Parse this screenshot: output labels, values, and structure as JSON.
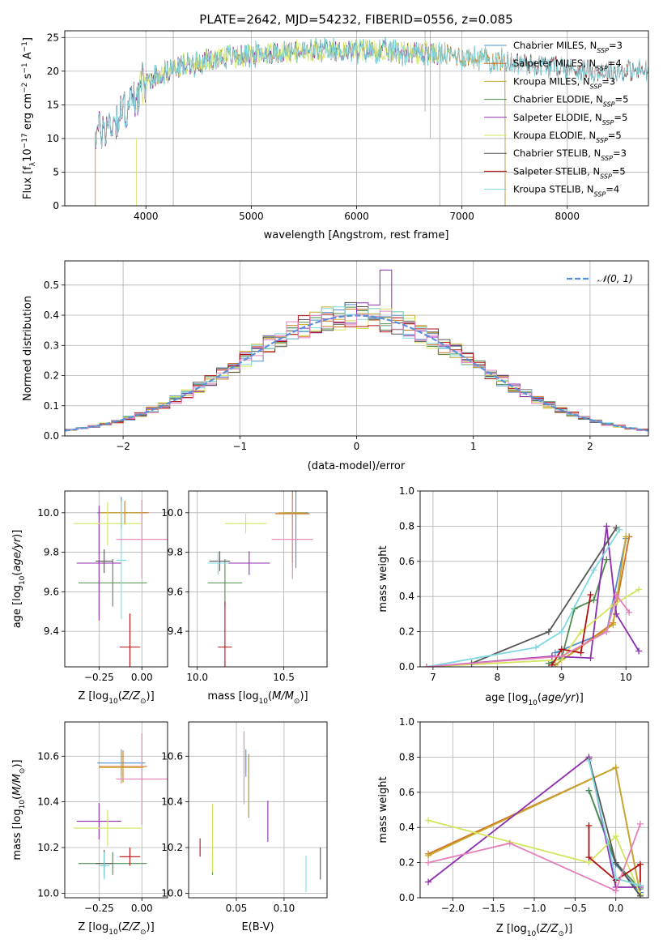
{
  "colors": {
    "Chabrier MILES": "#4f8fce",
    "Salpeter MILES": "#d27324",
    "Kroupa MILES": "#c6a72b",
    "Chabrier ELODIE": "#4d8c4d",
    "Salpeter ELODIE": "#8e2db0",
    "Kroupa ELODIE": "#d4e45a",
    "Chabrier STELIB": "#555555",
    "Salpeter STELIB": "#b01010",
    "Kroupa STELIB": "#7fd8e0",
    "pink": "#e47fbb",
    "gaussian": "#5b8fd8"
  },
  "chart_data": [
    {
      "id": "spectrum",
      "type": "line",
      "title": "PLATE=2642, MJD=54232, FIBERID=0556, z=0.085",
      "xlabel": "wavelength [Angstrom, rest frame]",
      "ylabel": "Flux [f_λ10^-17 erg cm^-2 s^-1 A^-1]",
      "xlim": [
        3230,
        8770
      ],
      "ylim": [
        0,
        26
      ],
      "xticks": [
        4000,
        5000,
        6000,
        7000,
        8000
      ],
      "yticks": [
        0,
        5,
        10,
        15,
        20,
        25
      ],
      "legend_position": "upper-right",
      "legend": [
        {
          "label": "Chabrier MILES, N_SSP=3",
          "text": "Chabrier MILES, N",
          "sub": "SSP",
          "tail": "=3",
          "color": "Chabrier MILES"
        },
        {
          "label": "Salpeter MILES, N_SSP=4",
          "text": "Salpeter MILES, N",
          "sub": "SSP",
          "tail": "=4",
          "color": "Salpeter MILES"
        },
        {
          "label": "Kroupa MILES, N_SSP=3",
          "text": "Kroupa MILES, N",
          "sub": "SSP",
          "tail": "=3",
          "color": "Kroupa MILES"
        },
        {
          "label": "Chabrier ELODIE, N_SSP=5",
          "text": "Chabrier ELODIE, N",
          "sub": "SSP",
          "tail": "=5",
          "color": "Chabrier ELODIE"
        },
        {
          "label": "Salpeter ELODIE, N_SSP=5",
          "text": "Salpeter ELODIE, N",
          "sub": "SSP",
          "tail": "=5",
          "color": "Salpeter ELODIE"
        },
        {
          "label": "Kroupa ELODIE, N_SSP=5",
          "text": "Kroupa ELODIE, N",
          "sub": "SSP",
          "tail": "=5",
          "color": "Kroupa ELODIE"
        },
        {
          "label": "Chabrier STELIB, N_SSP=3",
          "text": "Chabrier STELIB, N",
          "sub": "SSP",
          "tail": "=3",
          "color": "Chabrier STELIB"
        },
        {
          "label": "Salpeter STELIB, N_SSP=5",
          "text": "Salpeter STELIB, N",
          "sub": "SSP",
          "tail": "=5",
          "color": "Salpeter STELIB"
        },
        {
          "label": "Kroupa STELIB, N_SSP=4",
          "text": "Kroupa STELIB, N",
          "sub": "SSP",
          "tail": "=4",
          "color": "Kroupa STELIB"
        }
      ],
      "continuum": [
        [
          3500,
          10.5
        ],
        [
          3700,
          12.5
        ],
        [
          3900,
          16
        ],
        [
          4000,
          18.5
        ],
        [
          4200,
          20
        ],
        [
          4400,
          21
        ],
        [
          4700,
          22
        ],
        [
          5000,
          22.5
        ],
        [
          5300,
          22.8
        ],
        [
          5600,
          23
        ],
        [
          5900,
          23
        ],
        [
          6200,
          23
        ],
        [
          6500,
          22.8
        ],
        [
          6800,
          22.5
        ],
        [
          7100,
          22
        ],
        [
          7400,
          21.5
        ],
        [
          7700,
          21
        ],
        [
          8000,
          20.5
        ],
        [
          8300,
          20
        ]
      ],
      "series_ranges": {
        "Chabrier MILES": [
          3520,
          7410
        ],
        "Salpeter MILES": [
          3520,
          7410
        ],
        "Kroupa MILES": [
          3520,
          7410
        ],
        "Chabrier ELODIE": [
          3520,
          6790
        ],
        "Salpeter ELODIE": [
          3520,
          6790
        ],
        "Kroupa ELODIE": [
          3910,
          6790
        ],
        "Chabrier STELIB": [
          3520,
          8770
        ],
        "Salpeter STELIB": [
          3520,
          8770
        ],
        "Kroupa STELIB": [
          3520,
          8770
        ]
      }
    },
    {
      "id": "residuals",
      "type": "step",
      "xlabel": "(data-model)/error",
      "ylabel": "Normed distribution",
      "xlim": [
        -2.5,
        2.5
      ],
      "ylim": [
        0,
        0.58
      ],
      "xticks": [
        -2,
        -1,
        0,
        1,
        2
      ],
      "yticks": [
        0.0,
        0.1,
        0.2,
        0.3,
        0.4,
        0.5
      ],
      "bin_width": 0.1,
      "peak_bin": {
        "x": 0.25,
        "value": 0.55
      },
      "legend": [
        {
          "label": "𝒩(0, 1)",
          "color": "gaussian",
          "style": "dashed"
        }
      ]
    },
    {
      "id": "age_vs_Z",
      "type": "errorbar",
      "xlabel": "Z [log10(Z/Z⊙)]",
      "ylabel": "age  [log10(age/yr)]",
      "xlim": [
        -0.45,
        0.15
      ],
      "ylim": [
        9.22,
        10.11
      ],
      "xticks": [
        -0.25,
        0.0
      ],
      "yticks": [
        9.4,
        9.6,
        9.8,
        10.0
      ],
      "points": [
        {
          "s": "Chabrier MILES",
          "x": -0.12,
          "y": 10.0,
          "xerr": 0.14,
          "yerr": 0.08
        },
        {
          "s": "Salpeter MILES",
          "x": -0.1,
          "y": 10.0,
          "xerr": 0.14,
          "yerr": 0.06
        },
        {
          "s": "Kroupa MILES",
          "x": -0.12,
          "y": 10.0,
          "xerr": 0.13,
          "yerr": 0.06
        },
        {
          "s": "Chabrier ELODIE",
          "x": -0.17,
          "y": 9.645,
          "xerr": 0.2,
          "yerr": 0.12
        },
        {
          "s": "Salpeter ELODIE",
          "x": -0.25,
          "y": 9.745,
          "xerr": 0.13,
          "yerr": 0.29
        },
        {
          "s": "Kroupa ELODIE",
          "x": -0.2,
          "y": 9.945,
          "xerr": 0.2,
          "yerr": 0.11
        },
        {
          "s": "Chabrier STELIB",
          "x": -0.22,
          "y": 9.755,
          "xerr": 0.05,
          "yerr": 0.06
        },
        {
          "s": "Salpeter STELIB",
          "x": -0.07,
          "y": 9.32,
          "xerr": 0.06,
          "yerr": 0.17
        },
        {
          "s": "Kroupa STELIB",
          "x": -0.12,
          "y": 9.76,
          "xerr": 0.03,
          "yerr": 0.3
        },
        {
          "s": "pink",
          "x": 0.0,
          "y": 9.865,
          "xerr": 0.15,
          "yerr": 0.2
        }
      ]
    },
    {
      "id": "age_vs_mass",
      "type": "errorbar",
      "xlabel": "mass [log10(M/M⊙)]",
      "ylabel": "",
      "xlim": [
        9.95,
        10.75
      ],
      "ylim": [
        9.22,
        10.11
      ],
      "xticks": [
        10.0,
        10.5
      ],
      "yticks": [
        9.4,
        9.6,
        9.8,
        10.0
      ],
      "points": [
        {
          "s": "Chabrier MILES",
          "x": 10.57,
          "y": 10.0,
          "xerr": 0.07,
          "yerr": 0.28
        },
        {
          "s": "Salpeter MILES",
          "x": 10.55,
          "y": 9.995,
          "xerr": 0.1,
          "yerr": 0.25
        },
        {
          "s": "Kroupa MILES",
          "x": 10.55,
          "y": 10.0,
          "xerr": 0.08,
          "yerr": 0.06
        },
        {
          "s": "Chabrier ELODIE",
          "x": 10.16,
          "y": 9.645,
          "xerr": 0.1,
          "yerr": 0.12
        },
        {
          "s": "Salpeter ELODIE",
          "x": 10.3,
          "y": 9.745,
          "xerr": 0.12,
          "yerr": 0.06
        },
        {
          "s": "Kroupa ELODIE",
          "x": 10.28,
          "y": 9.945,
          "xerr": 0.12,
          "yerr": 0.05
        },
        {
          "s": "Chabrier STELIB",
          "x": 10.13,
          "y": 9.755,
          "xerr": 0.06,
          "yerr": 0.05
        },
        {
          "s": "Salpeter STELIB",
          "x": 10.16,
          "y": 9.32,
          "xerr": 0.04,
          "yerr": 0.23
        },
        {
          "s": "Kroupa STELIB",
          "x": 10.12,
          "y": 9.745,
          "xerr": 0.06,
          "yerr": 0.06
        },
        {
          "s": "pink",
          "x": 10.55,
          "y": 9.865,
          "xerr": 0.12,
          "yerr": 0.2
        }
      ]
    },
    {
      "id": "weight_vs_age",
      "type": "line",
      "xlabel": "age  [log10(age/yr)]",
      "ylabel": "mass weight",
      "xlim": [
        6.8,
        10.35
      ],
      "ylim": [
        0.0,
        1.0
      ],
      "xticks": [
        7,
        8,
        9,
        10
      ],
      "yticks": [
        0.0,
        0.2,
        0.4,
        0.6,
        0.8,
        1.0
      ],
      "series": [
        {
          "s": "Chabrier MILES",
          "x": [
            8.9,
            9.7,
            10.0
          ],
          "y": [
            0.08,
            0.2,
            0.73
          ]
        },
        {
          "s": "Salpeter MILES",
          "x": [
            8.9,
            9.8,
            10.05
          ],
          "y": [
            0.01,
            0.25,
            0.74
          ]
        },
        {
          "s": "Kroupa MILES",
          "x": [
            8.9,
            9.8,
            10.0
          ],
          "y": [
            0.01,
            0.24,
            0.74
          ]
        },
        {
          "s": "Chabrier ELODIE",
          "x": [
            8.8,
            9.0,
            9.2,
            9.5,
            9.7
          ],
          "y": [
            0.02,
            0.05,
            0.33,
            0.38,
            0.61
          ]
        },
        {
          "s": "Salpeter ELODIE",
          "x": [
            6.9,
            8.85,
            9.45,
            9.7,
            9.85,
            10.2
          ],
          "y": [
            0.0,
            0.06,
            0.05,
            0.8,
            0.3,
            0.09
          ]
        },
        {
          "s": "Kroupa ELODIE",
          "x": [
            6.9,
            9.0,
            9.3,
            9.8,
            10.2
          ],
          "y": [
            0.0,
            0.04,
            0.2,
            0.35,
            0.44
          ]
        },
        {
          "s": "Chabrier STELIB",
          "x": [
            7.6,
            8.8,
            9.85
          ],
          "y": [
            0.02,
            0.2,
            0.79
          ]
        },
        {
          "s": "Salpeter STELIB",
          "x": [
            8.85,
            9.0,
            9.3,
            9.45
          ],
          "y": [
            0.01,
            0.1,
            0.08,
            0.41
          ]
        },
        {
          "s": "Kroupa STELIB",
          "x": [
            6.9,
            8.6,
            9.0,
            9.5,
            9.9
          ],
          "y": [
            0.0,
            0.11,
            0.2,
            0.55,
            0.78
          ]
        },
        {
          "s": "pink",
          "x": [
            6.9,
            9.0,
            9.7,
            9.85,
            10.05
          ],
          "y": [
            0.0,
            0.06,
            0.2,
            0.41,
            0.31
          ]
        }
      ]
    },
    {
      "id": "mass_vs_Z",
      "type": "errorbar",
      "xlabel": "Z [log10(Z/Z⊙)]",
      "ylabel": "mass [log10(M/M⊙)]",
      "xlim": [
        -0.45,
        0.15
      ],
      "ylim": [
        9.98,
        10.75
      ],
      "xticks": [
        -0.25,
        0.0
      ],
      "yticks": [
        10.0,
        10.2,
        10.4,
        10.6
      ],
      "points": [
        {
          "s": "Chabrier MILES",
          "x": -0.12,
          "y": 10.57,
          "xerr": 0.14,
          "yerr": 0.06
        },
        {
          "s": "Salpeter MILES",
          "x": -0.11,
          "y": 10.555,
          "xerr": 0.14,
          "yerr": 0.07
        },
        {
          "s": "Kroupa MILES",
          "x": -0.12,
          "y": 10.55,
          "xerr": 0.13,
          "yerr": 0.07
        },
        {
          "s": "Chabrier ELODIE",
          "x": -0.17,
          "y": 10.13,
          "xerr": 0.2,
          "yerr": 0.05
        },
        {
          "s": "Salpeter ELODIE",
          "x": -0.25,
          "y": 10.315,
          "xerr": 0.13,
          "yerr": 0.08
        },
        {
          "s": "Kroupa ELODIE",
          "x": -0.2,
          "y": 10.285,
          "xerr": 0.2,
          "yerr": 0.08
        },
        {
          "s": "Chabrier STELIB",
          "x": -0.22,
          "y": 10.13,
          "xerr": 0.05,
          "yerr": 0.06
        },
        {
          "s": "Salpeter STELIB",
          "x": -0.07,
          "y": 10.16,
          "xerr": 0.06,
          "yerr": 0.04
        },
        {
          "s": "Kroupa STELIB",
          "x": -0.22,
          "y": 10.12,
          "xerr": 0.03,
          "yerr": 0.06
        },
        {
          "s": "pink",
          "x": 0.0,
          "y": 10.5,
          "xerr": 0.15,
          "yerr": 0.2
        }
      ]
    },
    {
      "id": "mass_vs_ebv",
      "type": "errorbar",
      "xlabel": "E(B-V)",
      "ylabel": "",
      "xlim": [
        0.0,
        0.145
      ],
      "ylim": [
        9.98,
        10.75
      ],
      "xticks": [
        0.05,
        0.1
      ],
      "yticks": [
        10.0,
        10.2,
        10.4,
        10.6
      ],
      "points": [
        {
          "s": "Chabrier MILES",
          "x": 0.06,
          "y": 10.57,
          "xerr": 0.0,
          "yerr": 0.06
        },
        {
          "s": "Salpeter MILES",
          "x": 0.063,
          "y": 10.47,
          "xerr": 0.0,
          "yerr": 0.14
        },
        {
          "s": "Kroupa MILES",
          "x": 0.063,
          "y": 10.47,
          "xerr": 0.0,
          "yerr": 0.13
        },
        {
          "s": "Chabrier ELODIE",
          "x": 0.025,
          "y": 10.13,
          "xerr": 0.0,
          "yerr": 0.05
        },
        {
          "s": "Salpeter ELODIE",
          "x": 0.083,
          "y": 10.315,
          "xerr": 0.0,
          "yerr": 0.09
        },
        {
          "s": "Kroupa ELODIE",
          "x": 0.025,
          "y": 10.24,
          "xerr": 0.0,
          "yerr": 0.15
        },
        {
          "s": "Chabrier STELIB",
          "x": 0.138,
          "y": 10.13,
          "xerr": 0.0,
          "yerr": 0.07
        },
        {
          "s": "Salpeter STELIB",
          "x": 0.012,
          "y": 10.2,
          "xerr": 0.0,
          "yerr": 0.04
        },
        {
          "s": "Kroupa STELIB",
          "x": 0.123,
          "y": 10.085,
          "xerr": 0.0,
          "yerr": 0.08
        },
        {
          "s": "pink",
          "x": 0.058,
          "y": 10.55,
          "xerr": 0.0,
          "yerr": 0.16
        }
      ]
    },
    {
      "id": "weight_vs_Z",
      "type": "line",
      "xlabel": "Z [log10(Z/Z⊙)]",
      "ylabel": "mass weight",
      "xlim": [
        -2.4,
        0.4
      ],
      "ylim": [
        0.0,
        1.0
      ],
      "xticks": [
        -2.0,
        -1.5,
        -1.0,
        -0.5,
        0.0
      ],
      "yticks": [
        0.0,
        0.2,
        0.4,
        0.6,
        0.8,
        1.0
      ],
      "series": [
        {
          "s": "Chabrier MILES",
          "x": [
            -0.33,
            0.0,
            0.3
          ],
          "y": [
            0.61,
            0.19,
            0.03
          ]
        },
        {
          "s": "Salpeter MILES",
          "x": [
            -2.3,
            0.0,
            0.3
          ],
          "y": [
            0.25,
            0.74,
            0.02
          ]
        },
        {
          "s": "Kroupa MILES",
          "x": [
            -2.3,
            0.0,
            0.3
          ],
          "y": [
            0.24,
            0.74,
            0.02
          ]
        },
        {
          "s": "Chabrier ELODIE",
          "x": [
            -0.33,
            0.0,
            0.3
          ],
          "y": [
            0.61,
            0.2,
            0.05
          ]
        },
        {
          "s": "Salpeter ELODIE",
          "x": [
            -2.3,
            -0.33,
            0.0,
            0.3
          ],
          "y": [
            0.09,
            0.8,
            0.06,
            0.06
          ]
        },
        {
          "s": "Kroupa ELODIE",
          "x": [
            -2.3,
            -0.33,
            0.0,
            0.3
          ],
          "y": [
            0.44,
            0.2,
            0.35,
            0.02
          ]
        },
        {
          "s": "Chabrier STELIB",
          "x": [
            -0.33,
            0.0,
            0.3
          ],
          "y": [
            0.79,
            0.2,
            0.01
          ]
        },
        {
          "s": "Salpeter STELIB",
          "x": [
            -0.33,
            -0.33,
            0.0,
            0.3,
            0.3
          ],
          "y": [
            0.41,
            0.23,
            0.1,
            0.19,
            0.07
          ]
        },
        {
          "s": "Kroupa STELIB",
          "x": [
            -0.33,
            0.0,
            0.3
          ],
          "y": [
            0.78,
            0.11,
            0.07
          ]
        },
        {
          "s": "pink",
          "x": [
            -2.3,
            -1.3,
            0.0,
            0.3
          ],
          "y": [
            0.2,
            0.31,
            0.04,
            0.42
          ]
        }
      ]
    }
  ]
}
